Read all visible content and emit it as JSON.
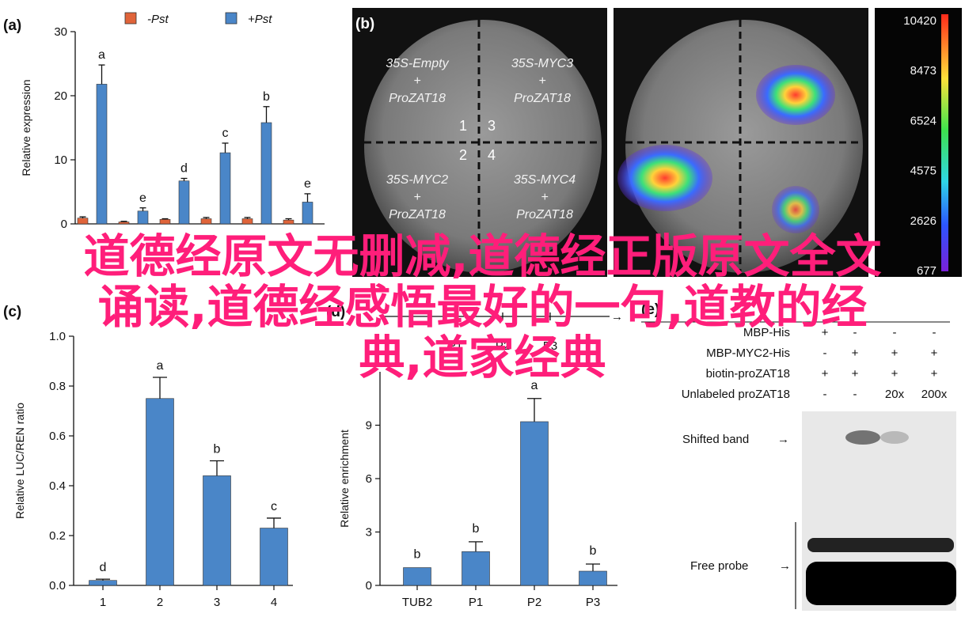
{
  "watermark": {
    "line1": "道德经原文无删减,道德经正版原文全文",
    "line2": "诵读,道德经感悟最好的一句,道教的经",
    "line3": "典,道家经典"
  },
  "colors": {
    "pst_minus": "#e0643a",
    "pst_plus": "#4a86c8",
    "bar": "#4a86c8",
    "error": "#111111"
  },
  "chart_data": [
    {
      "panel_letter": "(a)",
      "type": "bar",
      "ylabel": "Relative expression",
      "ylim": [
        0,
        30
      ],
      "yticks": [
        0,
        10,
        20,
        30
      ],
      "legend": {
        "placement": "top",
        "entries": [
          "-Pst",
          "+Pst"
        ]
      },
      "groups": 6,
      "series": [
        {
          "name": "-Pst",
          "values": [
            0.9,
            0.3,
            0.7,
            0.8,
            0.8,
            0.6
          ],
          "errors": [
            0.2,
            0.1,
            0.1,
            0.2,
            0.2,
            0.2
          ]
        },
        {
          "name": "+Pst",
          "values": [
            21.8,
            2.0,
            6.7,
            11.1,
            15.8,
            3.4
          ],
          "errors": [
            3.0,
            0.5,
            0.4,
            1.5,
            2.5,
            1.3
          ],
          "letters": [
            "a",
            "e",
            "d",
            "c",
            "b",
            "e"
          ]
        }
      ]
    },
    {
      "panel_letter": "(b)",
      "type": "image",
      "quadrants": [
        {
          "num": "1",
          "construct": "35S-Empty",
          "plus": "+",
          "promoter": "ProZAT18"
        },
        {
          "num": "3",
          "construct": "35S-MYC3",
          "plus": "+",
          "promoter": "ProZAT18"
        },
        {
          "num": "2",
          "construct": "35S-MYC2",
          "plus": "+",
          "promoter": "ProZAT18"
        },
        {
          "num": "4",
          "construct": "35S-MYC4",
          "plus": "+",
          "promoter": "ProZAT18"
        }
      ],
      "scale": [
        "10420",
        "8473",
        "6524",
        "4575",
        "2626",
        "677"
      ]
    },
    {
      "panel_letter": "(c)",
      "type": "bar",
      "ylabel": "Relative LUC/REN ratio",
      "ylim": [
        0,
        1.0
      ],
      "yticks": [
        "0.0",
        "0.2",
        "0.4",
        "0.6",
        "0.8",
        "1.0"
      ],
      "categories": [
        "1",
        "2",
        "3",
        "4"
      ],
      "values": [
        0.02,
        0.75,
        0.44,
        0.23
      ],
      "errors": [
        0.005,
        0.085,
        0.06,
        0.04
      ],
      "letters": [
        "d",
        "a",
        "b",
        "c"
      ]
    },
    {
      "panel_letter": "(d)",
      "type": "bar",
      "ylabel": "Relative enrichment",
      "ylim": [
        0,
        12
      ],
      "yticks": [
        "0",
        "3",
        "6",
        "9"
      ],
      "categories": [
        "TUB2",
        "P1",
        "P2",
        "P3"
      ],
      "values": [
        1.0,
        1.9,
        9.2,
        0.8
      ],
      "errors": [
        0,
        0.55,
        1.3,
        0.4
      ],
      "letters": [
        "b",
        "b",
        "a",
        "b"
      ],
      "promoter_labels": [
        "P1",
        "P2",
        "P3"
      ]
    },
    {
      "panel_letter": "(e)",
      "type": "image",
      "rows": [
        {
          "label": "MBP-His",
          "values": [
            "+",
            "-",
            "-",
            "-"
          ]
        },
        {
          "label": "MBP-MYC2-His",
          "values": [
            "-",
            "+",
            "+",
            "+"
          ]
        },
        {
          "label": "biotin-proZAT18",
          "values": [
            "+",
            "+",
            "+",
            "+"
          ]
        },
        {
          "label": "Unlabeled proZAT18",
          "values": [
            "-",
            "-",
            "20x",
            "200x"
          ]
        }
      ],
      "annotations": [
        "Shifted band",
        "Free probe"
      ]
    }
  ]
}
